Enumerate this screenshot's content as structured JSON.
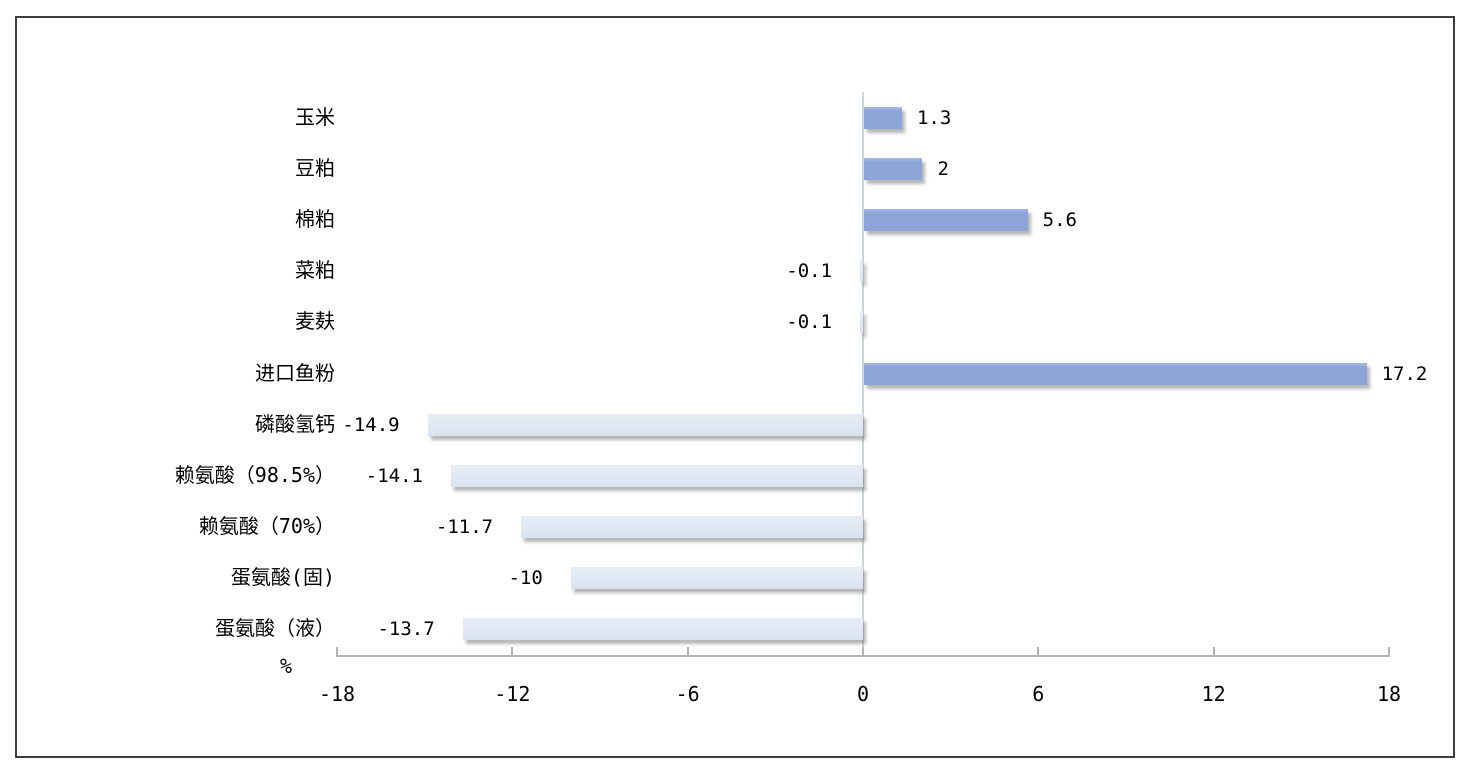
{
  "chart_data": {
    "type": "bar",
    "orientation": "horizontal",
    "title": "",
    "xlabel": "%",
    "ylabel": "",
    "categories": [
      "玉米",
      "豆粕",
      "棉粕",
      "菜粕",
      "麦麸",
      "进口鱼粉",
      "磷酸氢钙",
      "赖氨酸（98.5%）",
      "赖氨酸（70%）",
      "蛋氨酸(固)",
      "蛋氨酸（液）"
    ],
    "values": [
      1.3,
      2,
      5.6,
      -0.1,
      -0.1,
      17.2,
      -14.9,
      -14.1,
      -11.7,
      -10,
      -13.7
    ],
    "value_labels": [
      "1.3",
      "2",
      "5.6",
      "-0.1",
      "-0.1",
      "17.2",
      "-14.9",
      "-14.1",
      "-11.7",
      "-10",
      "-13.7"
    ],
    "x_ticks": [
      -18,
      -12,
      -6,
      0,
      6,
      12,
      18
    ],
    "x_tick_labels": [
      "-18",
      "-12",
      "-6",
      "0",
      "6",
      "12",
      "18"
    ],
    "xlim": [
      -18,
      18
    ],
    "grid": "zero-line-only",
    "legend": "none",
    "colors": {
      "bar_positive": "#8DA4D9",
      "bar_negative": "#DCE6F2",
      "axis_line": "#B3B3B3",
      "zero_line": "#CDD3DB",
      "frame_border": "#3D3D3D",
      "label_text": "#000000",
      "background": "#FFFFFF"
    }
  }
}
